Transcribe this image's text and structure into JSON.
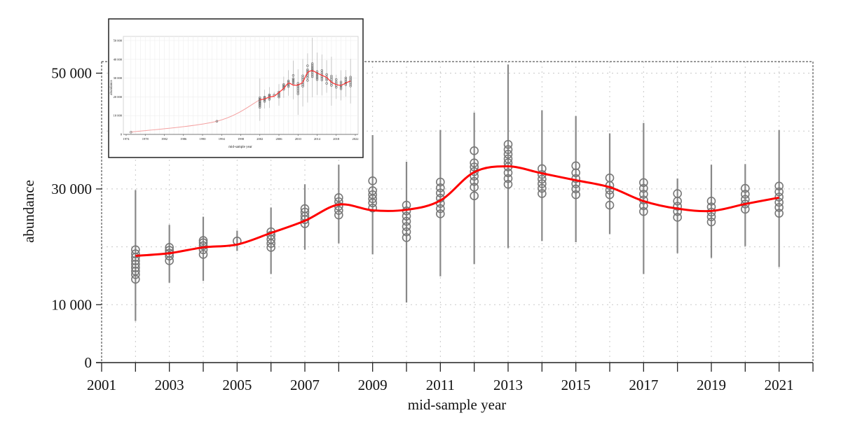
{
  "chart_data": [
    {
      "type": "scatter",
      "xlabel": "mid-sample year",
      "ylabel": "abundance",
      "xlim": [
        2001,
        2022
      ],
      "ylim": [
        0,
        52000
      ],
      "x_ticks": [
        "2001",
        "2003",
        "2005",
        "2007",
        "2009",
        "2011",
        "2013",
        "2015",
        "2017",
        "2019",
        "2021"
      ],
      "y_ticks": [
        {
          "value": 0,
          "label": "0"
        },
        {
          "value": 10000,
          "label": "10 000"
        },
        {
          "value": 30000,
          "label": "30 000"
        },
        {
          "value": 50000,
          "label": "50 000"
        }
      ],
      "grid": true,
      "colors": {
        "points": "#777777",
        "whiskers": "#888888",
        "trend": "#ff0000",
        "grid": "#c8c8c8"
      },
      "years": [
        {
          "year": 2002,
          "whisker": [
            7200,
            29800
          ],
          "points": [
            14400,
            15200,
            15800,
            16400,
            17000,
            17600,
            18200,
            18800,
            19500
          ]
        },
        {
          "year": 2003,
          "whisker": [
            13800,
            23800
          ],
          "points": [
            17600,
            18400,
            18900,
            19400,
            19900
          ]
        },
        {
          "year": 2004,
          "whisker": [
            14100,
            25200
          ],
          "points": [
            18700,
            19500,
            20200,
            20700,
            21100
          ]
        },
        {
          "year": 2005,
          "whisker": [
            19300,
            22800
          ],
          "points": [
            21000
          ]
        },
        {
          "year": 2006,
          "whisker": [
            15300,
            26800
          ],
          "points": [
            19900,
            20600,
            21300,
            22000,
            22600
          ]
        },
        {
          "year": 2007,
          "whisker": [
            19500,
            30800
          ],
          "points": [
            24000,
            24700,
            25300,
            26000,
            26600
          ]
        },
        {
          "year": 2008,
          "whisker": [
            20600,
            34200
          ],
          "points": [
            25500,
            26300,
            27000,
            27800,
            28500
          ]
        },
        {
          "year": 2009,
          "whisker": [
            18700,
            39300
          ],
          "points": [
            26700,
            27600,
            28300,
            29000,
            29700,
            31400
          ]
        },
        {
          "year": 2010,
          "whisker": [
            10400,
            34700
          ],
          "points": [
            21600,
            22600,
            23500,
            24400,
            25300,
            26200,
            27200
          ]
        },
        {
          "year": 2011,
          "whisker": [
            14900,
            40200
          ],
          "points": [
            25700,
            26600,
            27500,
            28400,
            29300,
            30200,
            31200
          ]
        },
        {
          "year": 2012,
          "whisker": [
            17000,
            43200
          ],
          "points": [
            28800,
            30300,
            31300,
            32200,
            33000,
            33800,
            34500,
            36600
          ]
        },
        {
          "year": 2013,
          "whisker": [
            19800,
            51500
          ],
          "points": [
            30800,
            31800,
            32800,
            33800,
            34500,
            35200,
            36000,
            36800,
            37700
          ]
        },
        {
          "year": 2014,
          "whisker": [
            21000,
            43600
          ],
          "points": [
            29200,
            30100,
            30900,
            31700,
            32500,
            33500
          ]
        },
        {
          "year": 2015,
          "whisker": [
            20800,
            42600
          ],
          "points": [
            29000,
            30000,
            30900,
            31800,
            32800,
            34000
          ]
        },
        {
          "year": 2016,
          "whisker": [
            22200,
            39600
          ],
          "points": [
            27200,
            29000,
            29800,
            30600,
            31900
          ]
        },
        {
          "year": 2017,
          "whisker": [
            15300,
            41400
          ],
          "points": [
            26100,
            27100,
            28100,
            29100,
            30100,
            31100
          ]
        },
        {
          "year": 2018,
          "whisker": [
            18900,
            31800
          ],
          "points": [
            25100,
            26100,
            27000,
            27900,
            29200
          ]
        },
        {
          "year": 2019,
          "whisker": [
            18100,
            34200
          ],
          "points": [
            24300,
            25200,
            26000,
            26900,
            27900
          ]
        },
        {
          "year": 2020,
          "whisker": [
            20100,
            34300
          ],
          "points": [
            26500,
            27400,
            28200,
            29100,
            30100
          ]
        },
        {
          "year": 2021,
          "whisker": [
            16500,
            40200
          ],
          "points": [
            25800,
            26800,
            27700,
            28600,
            29500,
            30500
          ]
        }
      ],
      "trend": [
        [
          2002,
          18450
        ],
        [
          2003,
          18900
        ],
        [
          2004,
          19900
        ],
        [
          2005,
          20400
        ],
        [
          2006,
          22400
        ],
        [
          2007,
          24500
        ],
        [
          2008,
          27300
        ],
        [
          2009,
          26300
        ],
        [
          2010,
          26400
        ],
        [
          2011,
          28000
        ],
        [
          2012,
          32900
        ],
        [
          2013,
          33900
        ],
        [
          2014,
          32700
        ],
        [
          2015,
          31500
        ],
        [
          2016,
          30300
        ],
        [
          2017,
          27900
        ],
        [
          2018,
          26600
        ],
        [
          2019,
          26200
        ],
        [
          2020,
          27400
        ],
        [
          2021,
          28500
        ]
      ]
    },
    {
      "type": "scatter",
      "inset": true,
      "xlabel": "mid-sample year",
      "ylabel": "abundance",
      "xlim": [
        1974,
        2022
      ],
      "ylim": [
        0,
        50000
      ],
      "x_ticks": [
        "1974",
        "1978",
        "1982",
        "1986",
        "1990",
        "1994",
        "1998",
        "2002",
        "2006",
        "2010",
        "2014",
        "2018",
        "2022"
      ],
      "y_ticks": [
        {
          "value": 0,
          "label": "0"
        },
        {
          "value": 10000,
          "label": "10 000"
        },
        {
          "value": 20000,
          "label": "20 000"
        },
        {
          "value": 30000,
          "label": "30 000"
        },
        {
          "value": 40000,
          "label": "40 000"
        },
        {
          "value": 50000,
          "label": "50 000"
        }
      ],
      "early_points": [
        [
          1975,
          1200
        ],
        [
          1993,
          7000
        ]
      ],
      "early_trend": [
        [
          1975,
          1200
        ],
        [
          1993,
          7000
        ],
        [
          2002,
          18450
        ]
      ],
      "colors": {
        "early_trend": "#f4a0a0"
      }
    }
  ]
}
